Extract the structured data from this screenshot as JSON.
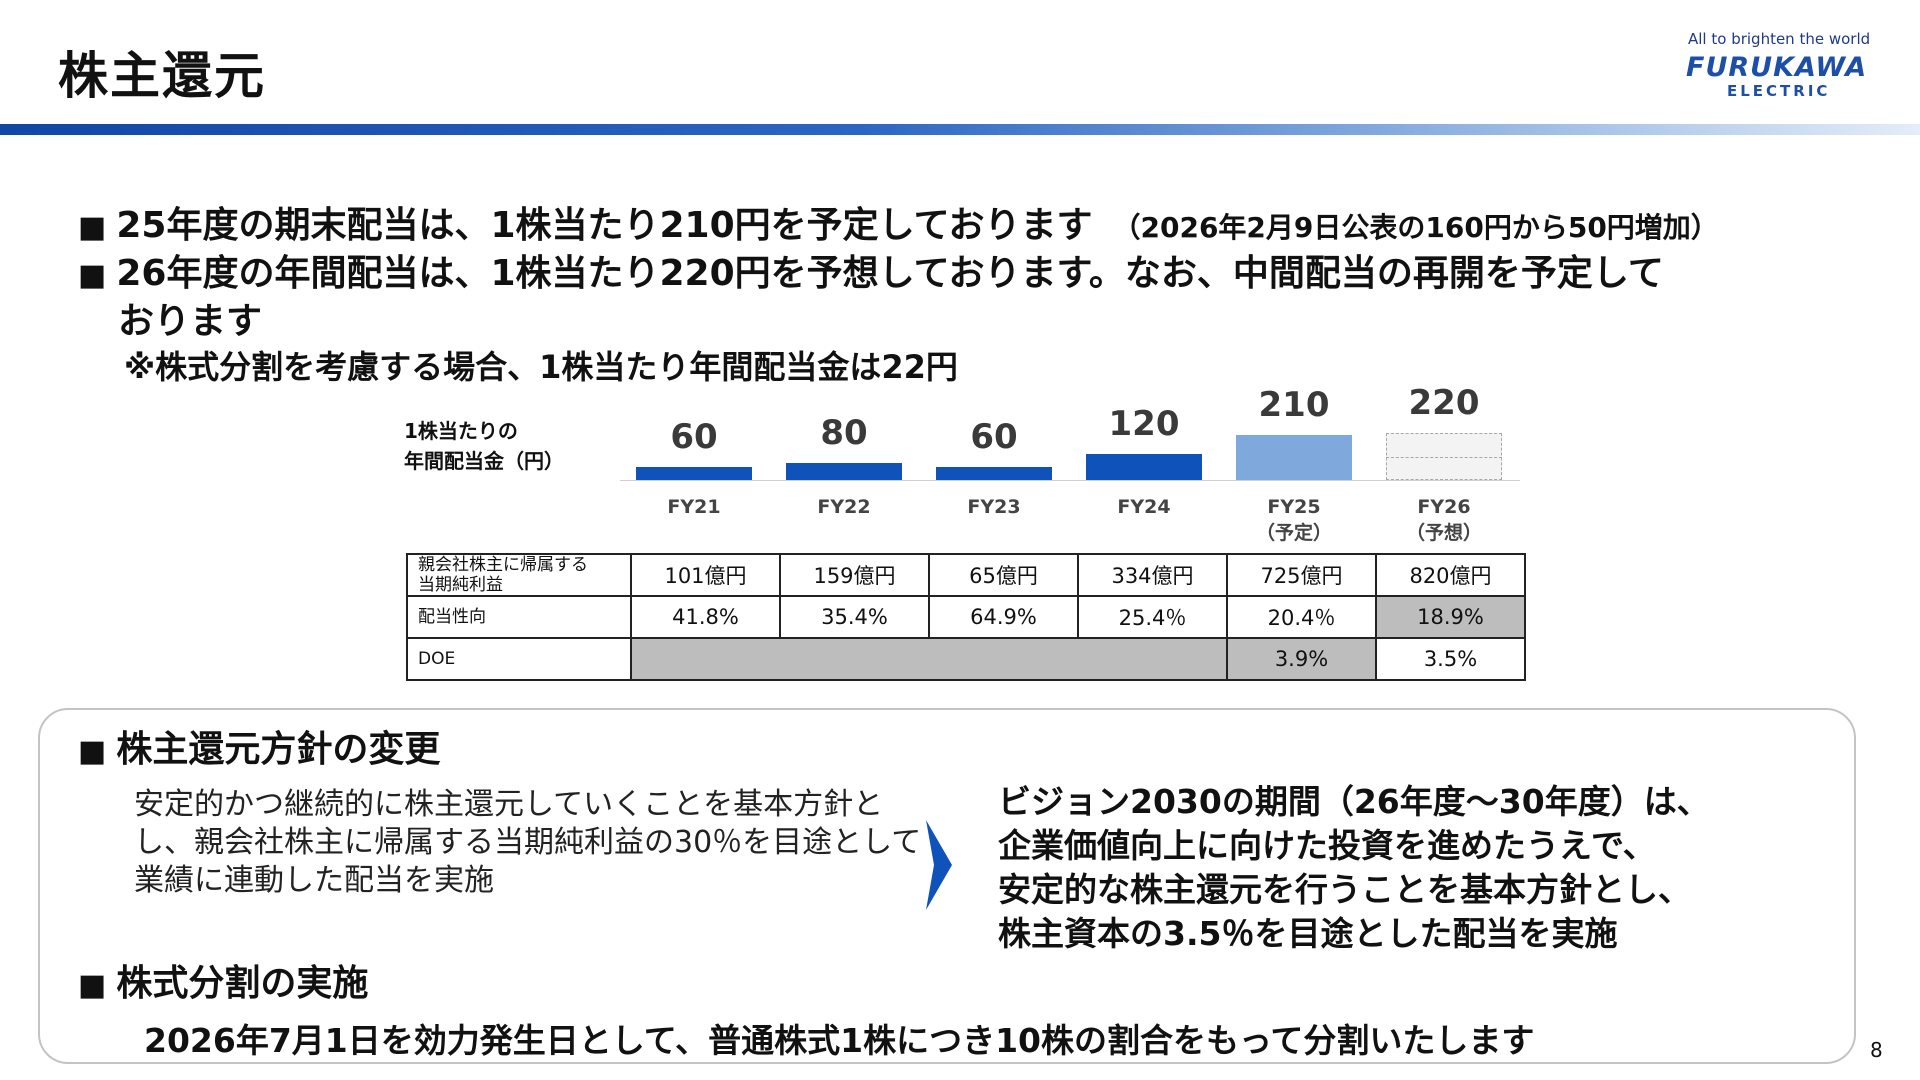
{
  "header": {
    "title": "株主還元",
    "tagline": "All to brighten the world",
    "logo_main": "FURUKAWA",
    "logo_sub": "ELECTRIC"
  },
  "bullets": {
    "b1": "25年度の期末配当は、1株当たり210円を予定しております",
    "b1_note": "（2026年2月9日公表の160円から50円増加）",
    "b2": "26年度の年間配当は、1株当たり220円を予想しております。なお、中間配当の再開を予定して",
    "b2_cont": "おります",
    "note": "※株式分割を考慮する場合、1株当たり年間配当金は22円"
  },
  "chart_data": {
    "type": "bar",
    "ylabel_line1": "1株当たりの",
    "ylabel_line2": "年間配当金（円）",
    "categories": [
      "FY21",
      "FY22",
      "FY23",
      "FY24",
      "FY25",
      "FY26"
    ],
    "category_notes": [
      "",
      "",
      "",
      "",
      "（予定）",
      "（予想）"
    ],
    "values": [
      60,
      80,
      60,
      120,
      210,
      220
    ],
    "value_labels": [
      "60",
      "80",
      "60",
      "120",
      "210",
      "220"
    ],
    "styles": [
      "solid",
      "solid",
      "solid",
      "solid",
      "light",
      "dashed"
    ],
    "colors": {
      "actual": "#0f52ba",
      "plan": "#7fa9dc",
      "forecast": "#f3f3f3"
    }
  },
  "table": {
    "rows": [
      {
        "header": "親会社株主に帰属する\n当期純利益",
        "cells": [
          "101億円",
          "159億円",
          "65億円",
          "334億円",
          "725億円",
          "820億円"
        ]
      },
      {
        "header": "配当性向",
        "cells": [
          "41.8%",
          "35.4%",
          "64.9%",
          "25.4％",
          "20.4％",
          "18.9%"
        ]
      },
      {
        "header": "DOE",
        "cells": [
          "3.9%",
          "3.5%"
        ]
      }
    ]
  },
  "policy": {
    "heading": "株主還元方針の変更",
    "left_text": "安定的かつ継続的に株主還元していくことを基本方針とし、親会社株主に帰属する当期純利益の30％を目途として業績に連動した配当を実施",
    "right_lines": [
      "ビジョン2030の期間（26年度～30年度）は、",
      "企業価値向上に向けた投資を進めたうえで、",
      "安定的な株主還元を行うことを基本方針とし、",
      "株主資本の3.5％を目途とした配当を実施"
    ]
  },
  "split": {
    "heading": "株式分割の実施",
    "text": "2026年7月1日を効力発生日として、普通株式1株につき10株の割合をもって分割いたします"
  },
  "page_number": "8"
}
